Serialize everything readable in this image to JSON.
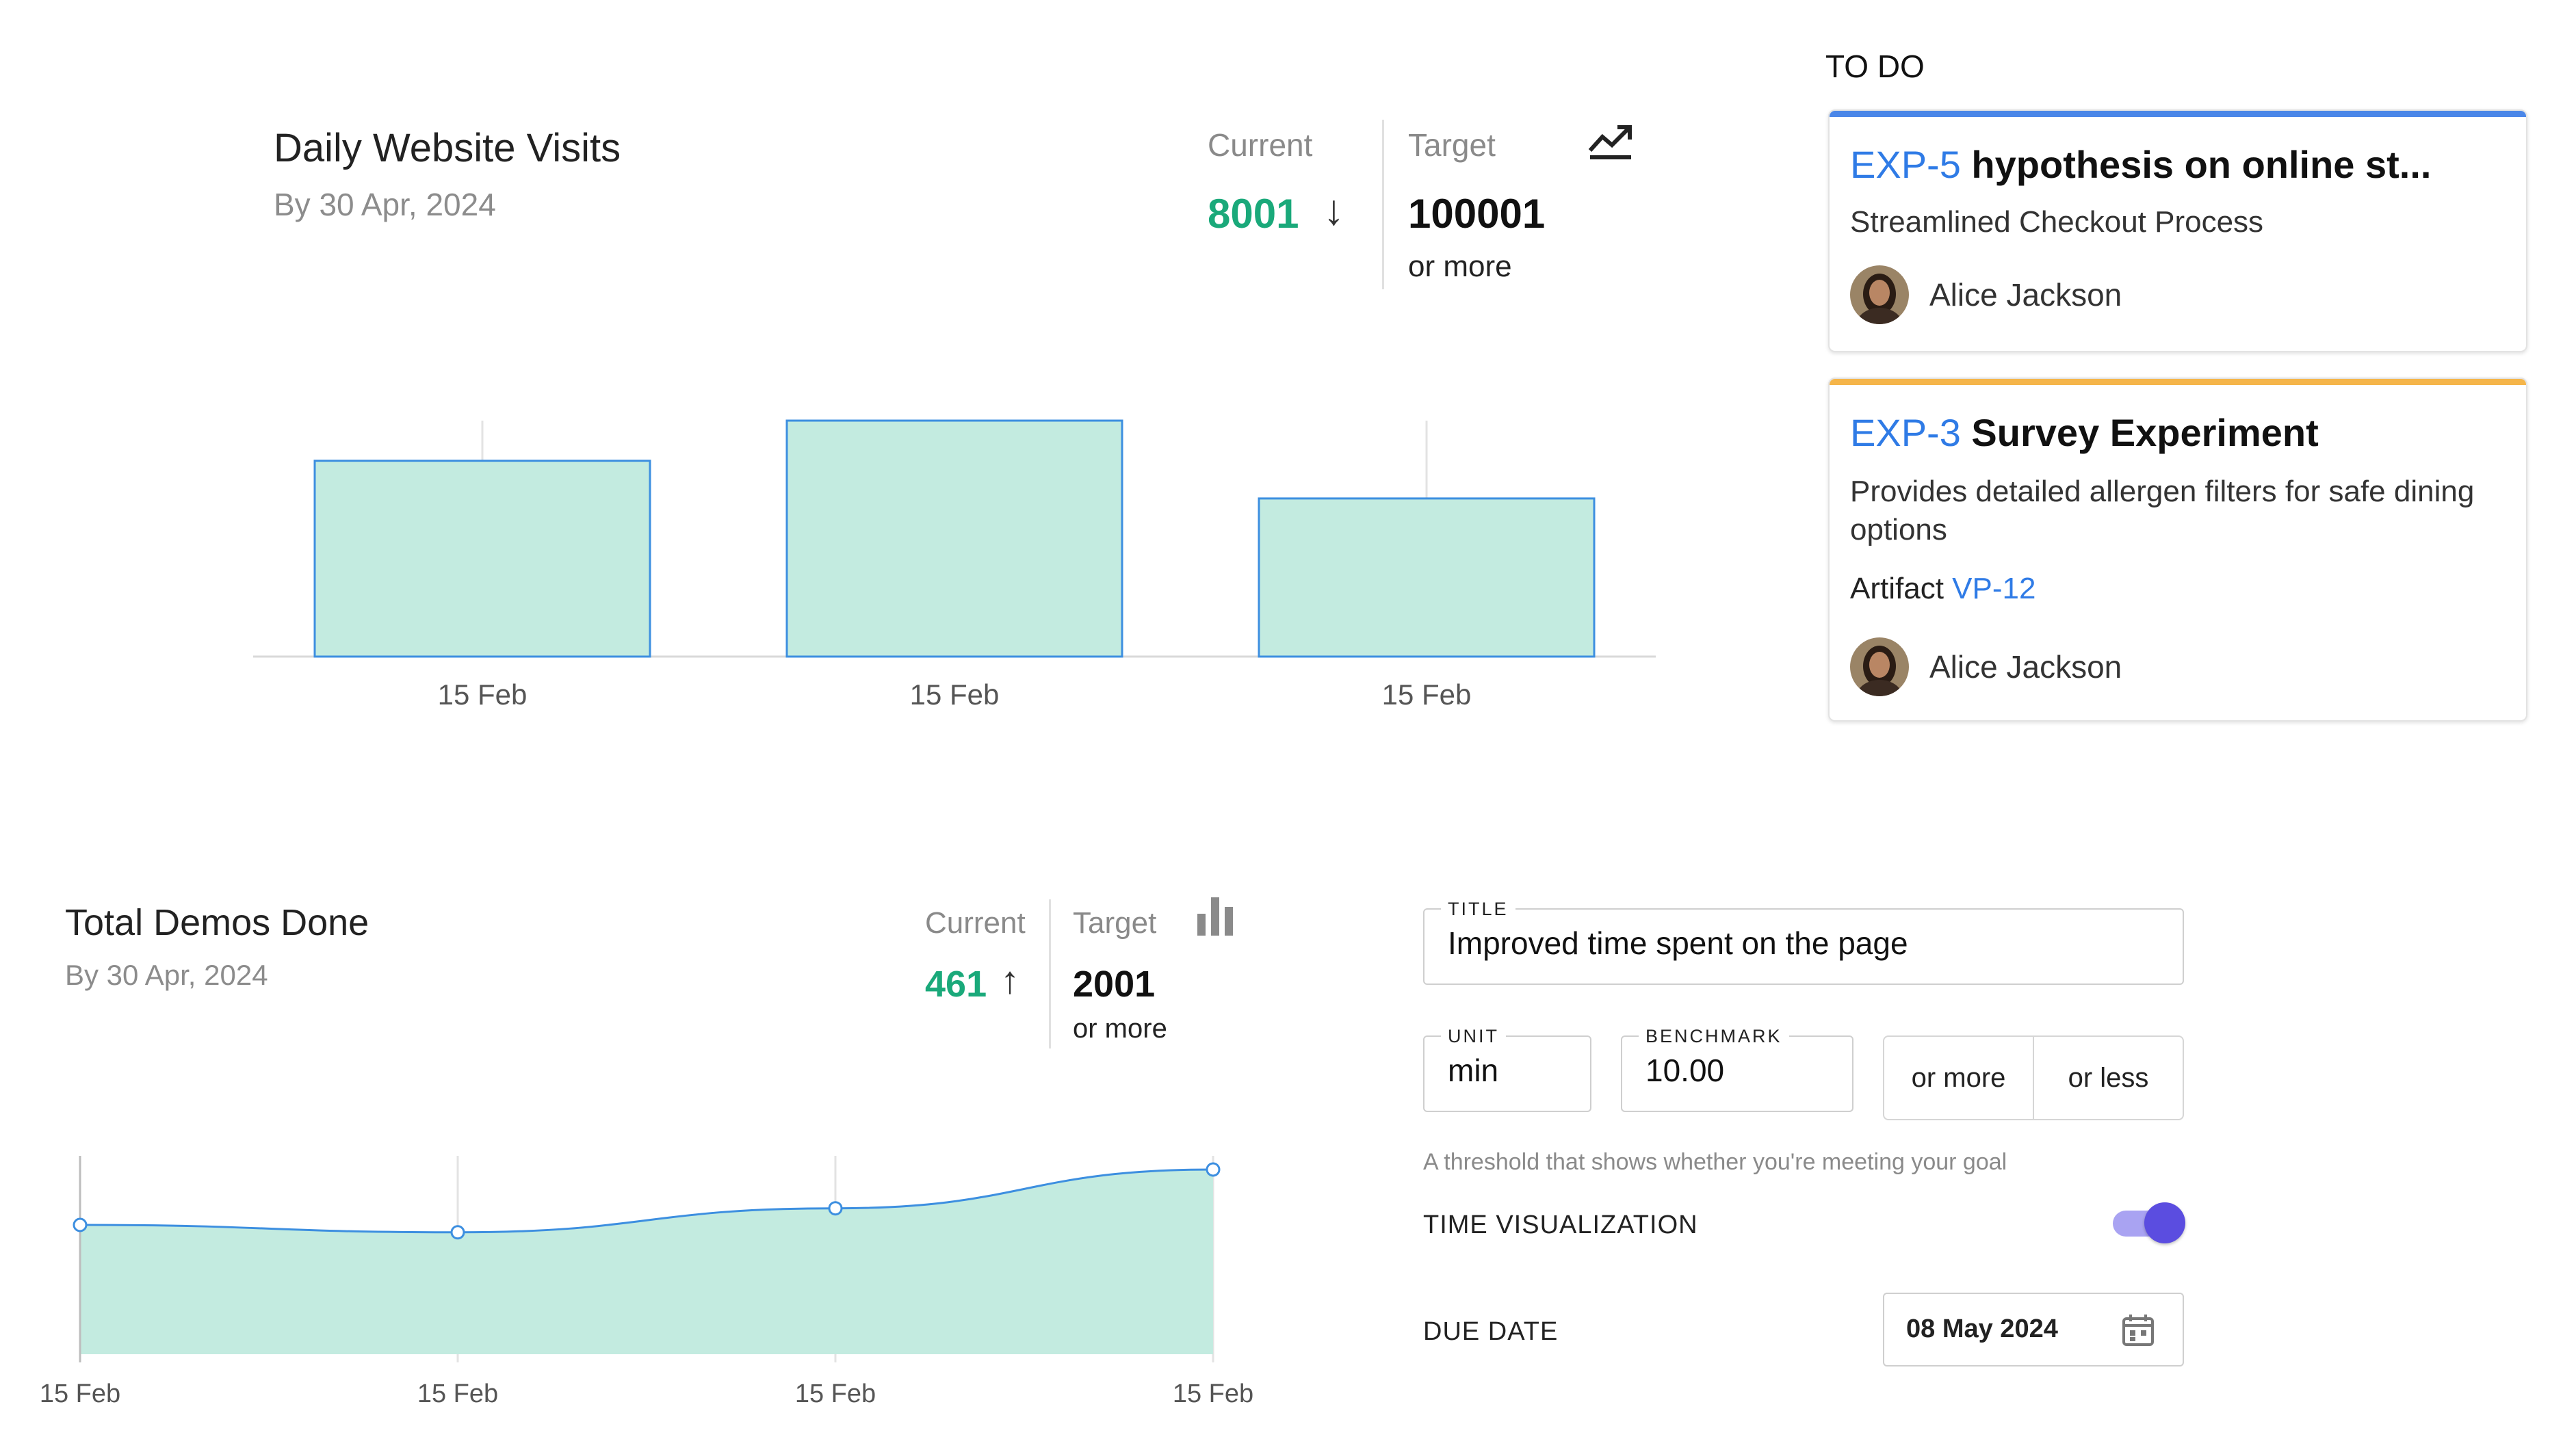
{
  "visits_card": {
    "title": "Daily Website Visits",
    "subtitle": "By 30 Apr, 2024",
    "current_label": "Current",
    "current_value": "8001",
    "current_trend": "down-arrow-icon",
    "target_label": "Target",
    "target_value": "100001",
    "target_suffix": "or more",
    "chart_type_icon": "trend-line-icon",
    "bar_fill": "#c3ebe0",
    "bar_stroke": "#3d8fe0"
  },
  "demos_card": {
    "title": "Total Demos Done",
    "subtitle": "By 30 Apr, 2024",
    "current_label": "Current",
    "current_value": "461",
    "current_trend": "up-arrow-icon",
    "target_label": "Target",
    "target_value": "2001",
    "target_suffix": "or more",
    "chart_type_icon": "bar-chart-icon",
    "area_fill": "#c3ebe0",
    "line_color": "#3d8fe0"
  },
  "chart_data": [
    {
      "type": "bar",
      "title": "Daily Website Visits",
      "categories": [
        "15 Feb",
        "15 Feb",
        "15 Feb"
      ],
      "values": [
        0.83,
        1.0,
        0.67
      ],
      "value_scale": "relative, no value axis shown",
      "xlabel": "",
      "ylabel": ""
    },
    {
      "type": "area",
      "title": "Total Demos Done",
      "categories": [
        "15 Feb",
        "15 Feb",
        "15 Feb",
        "15 Feb"
      ],
      "values": [
        0.7,
        0.66,
        0.79,
        1.0
      ],
      "value_scale": "relative, no value axis shown",
      "xlabel": "",
      "ylabel": ""
    }
  ],
  "todo": {
    "heading": "TO DO",
    "cards": [
      {
        "key": "EXP-5",
        "title": "hypothesis on online st...",
        "description": "Streamlined Checkout Process",
        "owner": "Alice Jackson",
        "accent": "#4a86e8"
      },
      {
        "key": "EXP-3",
        "title": "Survey Experiment",
        "description": "Provides detailed allergen filters for safe dining options",
        "artifact_label": "Artifact",
        "artifact_link": "VP-12",
        "owner": "Alice Jackson",
        "accent": "#f5b54a"
      }
    ]
  },
  "form": {
    "title_label": "TITLE",
    "title_value": "Improved time spent on the page",
    "unit_label": "UNIT",
    "unit_value": "min",
    "benchmark_label": "BENCHMARK",
    "benchmark_value": "10.00",
    "option_more": "or more",
    "option_less": "or less",
    "hint": "A threshold that shows whether you're meeting your goal",
    "time_visualization_label": "TIME VISUALIZATION",
    "time_visualization_on": true,
    "due_date_label": "DUE DATE",
    "due_date_value": "08 May 2024",
    "toggle_color": "#5b4de0"
  }
}
